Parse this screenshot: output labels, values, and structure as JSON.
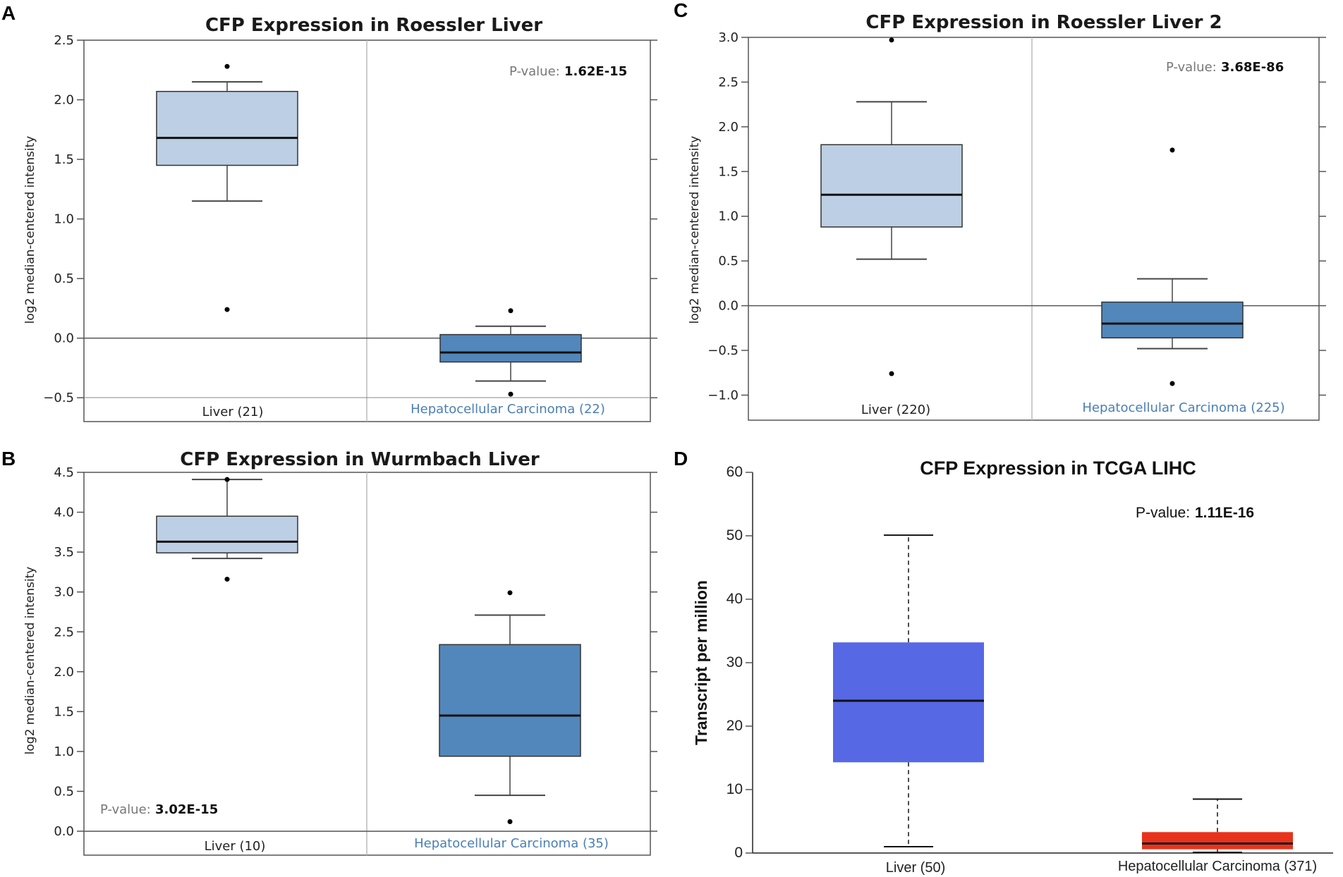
{
  "colors": {
    "normal_box": "#bccfe4",
    "tumor_box": "#5187bb",
    "hcc_label": "#4a7fb5",
    "d_normal_box": "#5668e4",
    "d_tumor_box": "#e8321c"
  },
  "chart_data": [
    {
      "id": "A",
      "type": "box",
      "panel_letter": "A",
      "title": "CFP Expression in Roessler Liver",
      "ylabel": "log2 median-centered intensity",
      "ylim": [
        -0.7,
        2.5
      ],
      "yticks": [
        "2.5",
        "2.0",
        "1.5",
        "1.0",
        "0.5",
        "0.0",
        "−0.5"
      ],
      "ytick_values": [
        2.5,
        2.0,
        1.5,
        1.0,
        0.5,
        0.0,
        -0.5
      ],
      "pvalue_label": "P-value:",
      "pvalue": "1.62E-15",
      "pvalue_position": "top-right",
      "groups": [
        {
          "label": "Liver (21)",
          "whisker_low": 1.15,
          "q1": 1.45,
          "median": 1.68,
          "q3": 2.07,
          "whisker_high": 2.15,
          "outliers": [
            2.28,
            0.24
          ]
        },
        {
          "label": "Hepatocellular Carcinoma (22)",
          "whisker_low": -0.36,
          "q1": -0.2,
          "median": -0.12,
          "q3": 0.03,
          "whisker_high": 0.1,
          "outliers": [
            0.23,
            -0.47
          ]
        }
      ]
    },
    {
      "id": "B",
      "type": "box",
      "panel_letter": "B",
      "title": "CFP Expression in Wurmbach Liver",
      "ylabel": "log2 median-centered intensity",
      "ylim": [
        -0.3,
        4.5
      ],
      "yticks": [
        "4.5",
        "4.0",
        "3.5",
        "3.0",
        "2.5",
        "2.0",
        "1.5",
        "1.0",
        "0.5",
        "0.0"
      ],
      "ytick_values": [
        4.5,
        4.0,
        3.5,
        3.0,
        2.5,
        2.0,
        1.5,
        1.0,
        0.5,
        0.0
      ],
      "pvalue_label": "P-value:",
      "pvalue": "3.02E-15",
      "pvalue_position": "bottom-left",
      "groups": [
        {
          "label": "Liver (10)",
          "whisker_low": 3.42,
          "q1": 3.49,
          "median": 3.63,
          "q3": 3.95,
          "whisker_high": 4.41,
          "outliers": [
            4.41,
            3.16
          ]
        },
        {
          "label": "Hepatocellular Carcinoma (35)",
          "whisker_low": 0.45,
          "q1": 0.94,
          "median": 1.45,
          "q3": 2.34,
          "whisker_high": 2.71,
          "outliers": [
            2.99,
            0.12
          ]
        }
      ]
    },
    {
      "id": "C",
      "type": "box",
      "panel_letter": "C",
      "title": "CFP Expression in Roessler Liver 2",
      "ylabel": "log2 median-centered intensity",
      "ylim": [
        -1.28,
        3.0
      ],
      "yticks": [
        "3.0",
        "2.5",
        "2.0",
        "1.5",
        "1.0",
        "0.5",
        "0.0",
        "−0.5",
        "−1.0"
      ],
      "ytick_values": [
        3.0,
        2.5,
        2.0,
        1.5,
        1.0,
        0.5,
        0.0,
        -0.5,
        -1.0
      ],
      "pvalue_label": "P-value:",
      "pvalue": "3.68E-86",
      "pvalue_position": "top-right",
      "groups": [
        {
          "label": "Liver (220)",
          "whisker_low": 0.52,
          "q1": 0.88,
          "median": 1.24,
          "q3": 1.8,
          "whisker_high": 2.28,
          "outliers": [
            2.97,
            -0.76
          ]
        },
        {
          "label": "Hepatocellular Carcinoma (225)",
          "whisker_low": -0.48,
          "q1": -0.36,
          "median": -0.2,
          "q3": 0.04,
          "whisker_high": 0.3,
          "outliers": [
            1.74,
            -0.87
          ]
        }
      ]
    },
    {
      "id": "D",
      "type": "box",
      "panel_letter": "D",
      "title": "CFP Expression in TCGA LIHC",
      "ylabel": "Transcript per million",
      "ylim": [
        0,
        60
      ],
      "yticks": [
        "60",
        "50",
        "40",
        "30",
        "20",
        "10",
        "0"
      ],
      "ytick_values": [
        60,
        50,
        40,
        30,
        20,
        10,
        0
      ],
      "pvalue_label": "P-value:",
      "pvalue": "1.11E-16",
      "pvalue_position": "top-right",
      "groups": [
        {
          "label": "Liver (50)",
          "whisker_low": 1.0,
          "q1": 14.3,
          "median": 24.0,
          "q3": 33.2,
          "whisker_high": 50.1,
          "outliers": []
        },
        {
          "label": "Hepatocellular Carcinoma (371)",
          "whisker_low": 0.1,
          "q1": 0.6,
          "median": 1.5,
          "q3": 3.3,
          "whisker_high": 8.5,
          "outliers": []
        }
      ]
    }
  ]
}
